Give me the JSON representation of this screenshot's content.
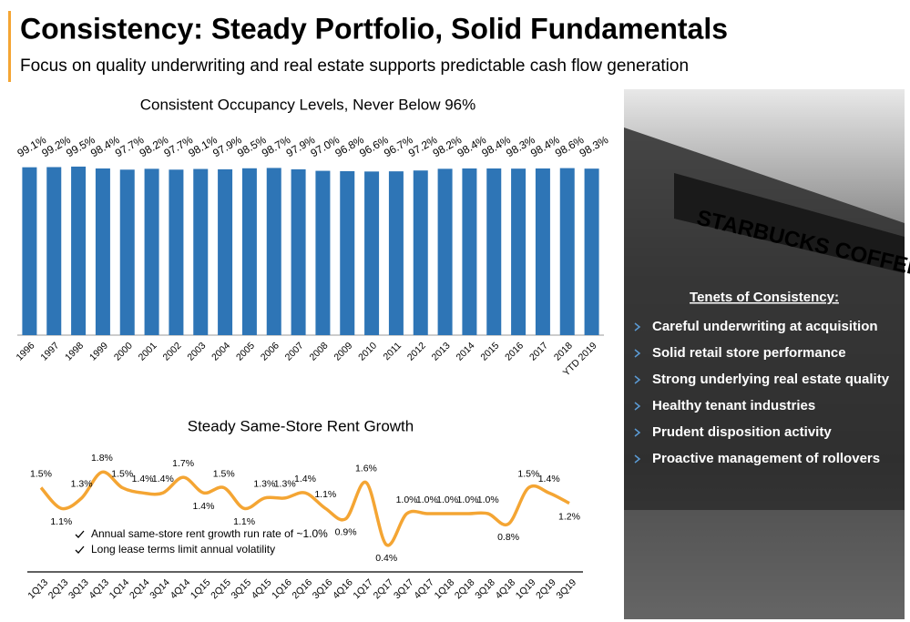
{
  "title": "Consistency: Steady Portfolio, Solid Fundamentals",
  "subtitle": "Focus on quality underwriting and real estate supports predictable cash flow generation",
  "photo": {
    "sign": "STARBUCKS COFFEE"
  },
  "tenets": {
    "title": "Tenets of Consistency:",
    "items": [
      "Careful underwriting at acquisition",
      "Solid retail store performance",
      "Strong underlying real estate quality",
      "Healthy tenant industries",
      "Prudent disposition activity",
      "Proactive management of rollovers"
    ]
  },
  "chart_data": [
    {
      "type": "bar",
      "title": "Consistent Occupancy Levels, Never Below 96%",
      "categories": [
        "1996",
        "1997",
        "1998",
        "1999",
        "2000",
        "2001",
        "2002",
        "2003",
        "2004",
        "2005",
        "2006",
        "2007",
        "2008",
        "2009",
        "2010",
        "2011",
        "2012",
        "2013",
        "2014",
        "2015",
        "2016",
        "2017",
        "2018",
        "YTD 2019"
      ],
      "values": [
        99.1,
        99.2,
        99.5,
        98.4,
        97.7,
        98.2,
        97.7,
        98.1,
        97.9,
        98.5,
        98.7,
        97.9,
        97.0,
        96.8,
        96.6,
        96.7,
        97.2,
        98.2,
        98.4,
        98.4,
        98.3,
        98.4,
        98.6,
        98.3
      ],
      "value_labels": [
        "99.1%",
        "99.2%",
        "99.5%",
        "98.4%",
        "97.7%",
        "98.2%",
        "97.7%",
        "98.1%",
        "97.9%",
        "98.5%",
        "98.7%",
        "97.9%",
        "97.0%",
        "96.8%",
        "96.6%",
        "96.7%",
        "97.2%",
        "98.2%",
        "98.4%",
        "98.4%",
        "98.3%",
        "98.4%",
        "98.6%",
        "98.3%"
      ],
      "color": "#2e75b6",
      "ylim": [
        0,
        100
      ]
    },
    {
      "type": "line",
      "title": "Steady Same-Store Rent Growth",
      "categories": [
        "1Q13",
        "2Q13",
        "3Q13",
        "4Q13",
        "1Q14",
        "2Q14",
        "3Q14",
        "4Q14",
        "1Q15",
        "2Q15",
        "3Q15",
        "4Q15",
        "1Q16",
        "2Q16",
        "3Q16",
        "4Q16",
        "1Q17",
        "2Q17",
        "3Q17",
        "4Q17",
        "1Q18",
        "2Q18",
        "3Q18",
        "4Q18",
        "1Q19",
        "2Q19",
        "3Q19"
      ],
      "values": [
        1.5,
        1.1,
        1.3,
        1.8,
        1.5,
        1.4,
        1.4,
        1.7,
        1.4,
        1.5,
        1.1,
        1.3,
        1.3,
        1.4,
        1.1,
        0.9,
        1.6,
        0.4,
        1.0,
        1.0,
        1.0,
        1.0,
        1.0,
        0.8,
        1.5,
        1.4,
        1.2
      ],
      "value_labels": [
        "1.5%",
        "1.1%",
        "1.3%",
        "1.8%",
        "1.5%",
        "1.4%",
        "1.4%",
        "1.7%",
        "1.4%",
        "1.5%",
        "1.1%",
        "1.3%",
        "1.3%",
        "1.4%",
        "1.1%",
        "0.9%",
        "1.6%",
        "0.4%",
        "1.0%",
        "1.0%",
        "1.0%",
        "1.0%",
        "1.0%",
        "0.8%",
        "1.5%",
        "1.4%",
        "1.2%"
      ],
      "color": "#f4a533",
      "ylim": [
        0,
        2
      ],
      "annotations": [
        "Annual same-store rent growth run rate of ~1.0%",
        "Long lease terms limit annual volatility"
      ]
    }
  ]
}
